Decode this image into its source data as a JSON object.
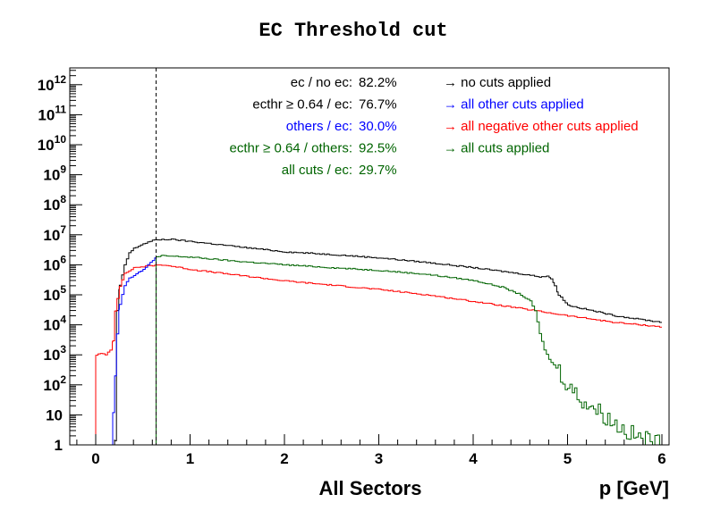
{
  "chart_data": {
    "type": "line",
    "title": "EC Threshold cut",
    "xlabel": "p [GeV]",
    "sector_label": "All Sectors",
    "xlim": [
      -0.3,
      6.0
    ],
    "ylim": [
      1,
      40000000000000
    ],
    "yscale": "log",
    "x_ticks": [
      {
        "value": 0,
        "label": "0"
      },
      {
        "value": 1,
        "label": "1"
      },
      {
        "value": 2,
        "label": "2"
      },
      {
        "value": 3,
        "label": "3"
      },
      {
        "value": 4,
        "label": "4"
      },
      {
        "value": 5,
        "label": "5"
      },
      {
        "value": 6,
        "label": "6"
      }
    ],
    "y_ticks": [
      {
        "value": 1,
        "base": "1",
        "exp": ""
      },
      {
        "value": 10,
        "base": "10",
        "exp": ""
      },
      {
        "value": 100,
        "base": "10",
        "exp": "2"
      },
      {
        "value": 1000,
        "base": "10",
        "exp": "3"
      },
      {
        "value": 10000,
        "base": "10",
        "exp": "4"
      },
      {
        "value": 100000,
        "base": "10",
        "exp": "5"
      },
      {
        "value": 1000000,
        "base": "10",
        "exp": "6"
      },
      {
        "value": 10000000,
        "base": "10",
        "exp": "7"
      },
      {
        "value": 100000000,
        "base": "10",
        "exp": "8"
      },
      {
        "value": 1000000000,
        "base": "10",
        "exp": "9"
      },
      {
        "value": 10000000000,
        "base": "10",
        "exp": "10"
      },
      {
        "value": 100000000000,
        "base": "10",
        "exp": "11"
      },
      {
        "value": 1000000000000,
        "base": "10",
        "exp": "12"
      }
    ],
    "cut_line_x": 0.64,
    "series": [
      {
        "key": "black",
        "color": "#000000",
        "points": [
          [
            0.2,
            1
          ],
          [
            0.22,
            30000
          ],
          [
            0.25,
            200000
          ],
          [
            0.3,
            1000000
          ],
          [
            0.35,
            2500000
          ],
          [
            0.4,
            3500000
          ],
          [
            0.5,
            5000000
          ],
          [
            0.6,
            6500000
          ],
          [
            0.7,
            7000000
          ],
          [
            0.8,
            7000000
          ],
          [
            1.0,
            6000000
          ],
          [
            1.5,
            4000000
          ],
          [
            2.0,
            2700000
          ],
          [
            2.5,
            2200000
          ],
          [
            3.0,
            1700000
          ],
          [
            3.5,
            1200000
          ],
          [
            4.0,
            800000
          ],
          [
            4.5,
            500000
          ],
          [
            4.7,
            400000
          ],
          [
            4.78,
            420000
          ],
          [
            4.82,
            350000
          ],
          [
            4.86,
            200000
          ],
          [
            4.9,
            100000
          ],
          [
            5.0,
            45000
          ],
          [
            5.5,
            20000
          ],
          [
            6.0,
            12000
          ]
        ]
      },
      {
        "key": "red",
        "color": "#ff0000",
        "points": [
          [
            0.0,
            1
          ],
          [
            0.0,
            1000
          ],
          [
            0.05,
            1100
          ],
          [
            0.1,
            1000
          ],
          [
            0.15,
            1500
          ],
          [
            0.18,
            3000
          ],
          [
            0.2,
            30000
          ],
          [
            0.25,
            200000
          ],
          [
            0.3,
            500000
          ],
          [
            0.4,
            800000
          ],
          [
            0.6,
            950000
          ],
          [
            0.7,
            1000000
          ],
          [
            0.8,
            900000
          ],
          [
            1.0,
            700000
          ],
          [
            1.5,
            450000
          ],
          [
            2.0,
            290000
          ],
          [
            2.5,
            210000
          ],
          [
            3.0,
            150000
          ],
          [
            3.5,
            100000
          ],
          [
            4.0,
            60000
          ],
          [
            4.5,
            35000
          ],
          [
            5.0,
            20000
          ],
          [
            5.5,
            12000
          ],
          [
            6.0,
            8500
          ]
        ]
      },
      {
        "key": "blue",
        "color": "#0000ff",
        "points": [
          [
            0.16,
            1
          ],
          [
            0.18,
            10
          ],
          [
            0.2,
            300
          ],
          [
            0.22,
            5000
          ],
          [
            0.25,
            50000
          ],
          [
            0.3,
            200000
          ],
          [
            0.35,
            350000
          ],
          [
            0.4,
            450000
          ],
          [
            0.5,
            700000
          ],
          [
            0.55,
            1000000
          ],
          [
            0.6,
            1400000
          ],
          [
            0.64,
            1800000
          ]
        ]
      },
      {
        "key": "green",
        "color": "#006400",
        "points": [
          [
            0.64,
            1
          ],
          [
            0.64,
            1800000
          ],
          [
            0.7,
            2000000
          ],
          [
            1.0,
            1800000
          ],
          [
            1.5,
            1300000
          ],
          [
            2.0,
            1000000
          ],
          [
            2.5,
            800000
          ],
          [
            3.0,
            650000
          ],
          [
            3.5,
            480000
          ],
          [
            4.0,
            300000
          ],
          [
            4.3,
            180000
          ],
          [
            4.5,
            100000
          ],
          [
            4.6,
            60000
          ],
          [
            4.65,
            30000
          ],
          [
            4.7,
            5000
          ],
          [
            4.75,
            1500
          ],
          [
            4.8,
            700
          ],
          [
            4.9,
            300
          ],
          [
            5.0,
            100
          ],
          [
            5.1,
            40
          ],
          [
            5.3,
            15
          ],
          [
            5.5,
            5
          ],
          [
            5.7,
            2
          ],
          [
            6.0,
            1
          ]
        ]
      }
    ]
  },
  "stats": [
    {
      "label": "ec / no ec:",
      "value": "82.2%",
      "color": "#000000"
    },
    {
      "label": "ecthr ≥ 0.64 / ec:",
      "value": "76.7%",
      "color": "#000000"
    },
    {
      "label": "others / ec:",
      "value": "30.0%",
      "color": "#0000ff"
    },
    {
      "label": "ecthr ≥ 0.64 / others:",
      "value": "92.5%",
      "color": "#006400"
    },
    {
      "label": "all cuts / ec:",
      "value": "29.7%",
      "color": "#006400"
    }
  ],
  "legend": [
    {
      "text": "→ no cuts applied",
      "color": "#000000"
    },
    {
      "text": "→ all other cuts applied",
      "color": "#0000ff"
    },
    {
      "text": "→ all negative other cuts applied",
      "color": "#ff0000"
    },
    {
      "text": "→ all cuts applied",
      "color": "#006400"
    }
  ]
}
